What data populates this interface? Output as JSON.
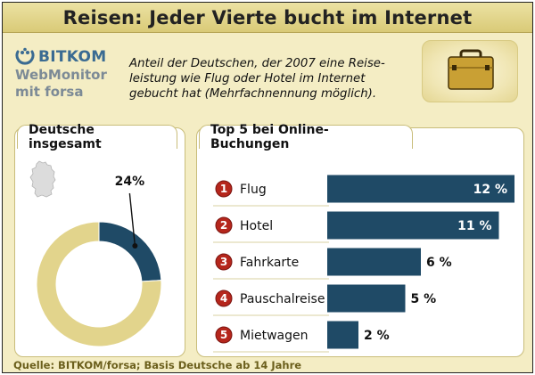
{
  "title": "Reisen: Jeder Vierte bucht im Internet",
  "logo": {
    "brand": "BITKOM",
    "line1": "WebMonitor",
    "line2": "mit forsa",
    "icon": "bitkom-dots-logo"
  },
  "subtitle": "Anteil der Deutschen, der 2007 eine Reiseleistung wie Flug oder Hotel im Internet gebucht hat (Mehrfachnennung möglich).",
  "subtitle_lines": [
    "Anteil der Deutschen, der 2007 eine Reise-",
    "leistung wie Flug oder Hotel im Internet",
    "gebucht hat (Mehrfachnennung möglich)."
  ],
  "source": "Quelle: BITKOM/forsa; Basis Deutsche ab 14 Jahre",
  "colors": {
    "accent_dark": "#1f4a66",
    "donut_rest": "#e2d48c",
    "rank_badge": "#b5261c",
    "background": "#f4edc4"
  },
  "chart_data": [
    {
      "type": "pie",
      "title": "Deutsche insgesamt",
      "values": [
        24,
        76
      ],
      "labels": [
        "24%",
        ""
      ],
      "donut": true
    },
    {
      "type": "bar",
      "orientation": "horizontal",
      "title": "Top 5 bei Online-Buchungen",
      "ranks": [
        "1",
        "2",
        "3",
        "4",
        "5"
      ],
      "categories": [
        "Flug",
        "Hotel",
        "Fahrkarte",
        "Pauschalreise",
        "Mietwagen"
      ],
      "values": [
        12,
        11,
        6,
        5,
        2
      ],
      "value_labels": [
        "12 %",
        "11 %",
        "6 %",
        "5 %",
        "2 %"
      ],
      "xlim": [
        0,
        12
      ]
    }
  ]
}
